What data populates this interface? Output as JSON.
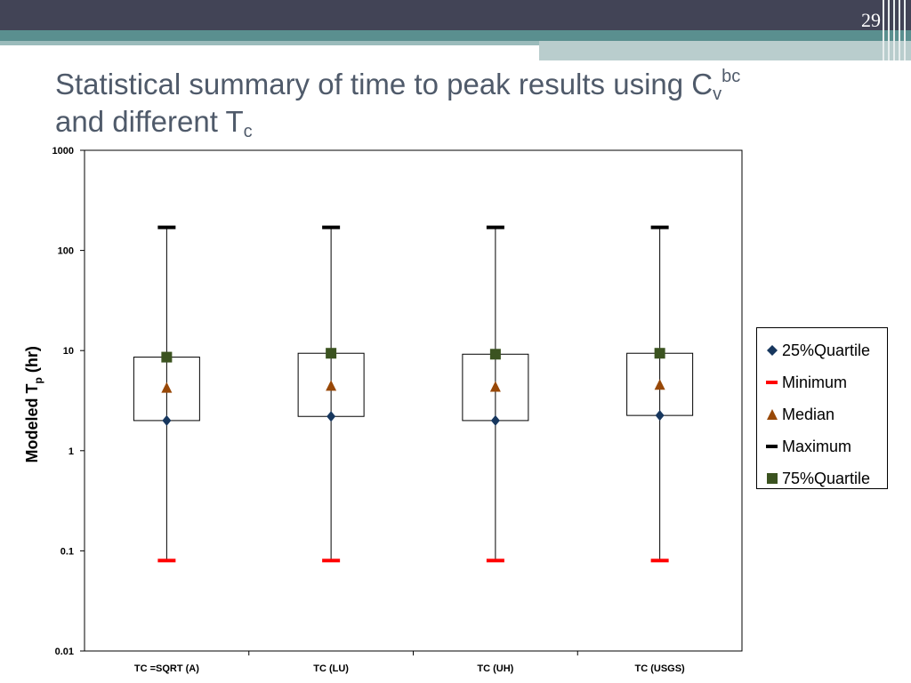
{
  "slide": {
    "number": "29"
  },
  "title": {
    "line1": "Statistical summary of time to peak results using C",
    "sub_v": "v",
    "sup_bc": "bc",
    "line2": "and different T",
    "sub_c": "c"
  },
  "chart_data": {
    "type": "box",
    "yscale": "log",
    "ylim": [
      0.01,
      1000
    ],
    "ylabel_main": "Modeled T",
    "ylabel_sub": "p",
    "ylabel_unit": " (hr)",
    "ytick_labels": [
      "1000",
      "100",
      "10",
      "1",
      "0.1",
      "0.01"
    ],
    "ytick_values": [
      1000,
      100,
      10,
      1,
      0.1,
      0.01
    ],
    "categories": [
      "TC =SQRT (A)",
      "TC (LU)",
      "TC (UH)",
      "TC (USGS)"
    ],
    "series": [
      {
        "name": "25%Quartile",
        "marker": "diamond",
        "color": "#17375e",
        "values": [
          2.0,
          2.2,
          2.0,
          2.25
        ]
      },
      {
        "name": "Minimum",
        "marker": "dash",
        "color": "#ff0000",
        "values": [
          0.08,
          0.08,
          0.08,
          0.08
        ]
      },
      {
        "name": "Median",
        "marker": "triangle",
        "color": "#984807",
        "values": [
          4.2,
          4.4,
          4.3,
          4.5
        ]
      },
      {
        "name": "Maximum",
        "marker": "dash",
        "color": "#000000",
        "values": [
          170,
          170,
          170,
          170
        ]
      },
      {
        "name": "75%Quartile",
        "marker": "square",
        "color": "#3b5320",
        "values": [
          8.6,
          9.4,
          9.2,
          9.4
        ]
      }
    ],
    "legend_position": "right",
    "grid": false
  }
}
